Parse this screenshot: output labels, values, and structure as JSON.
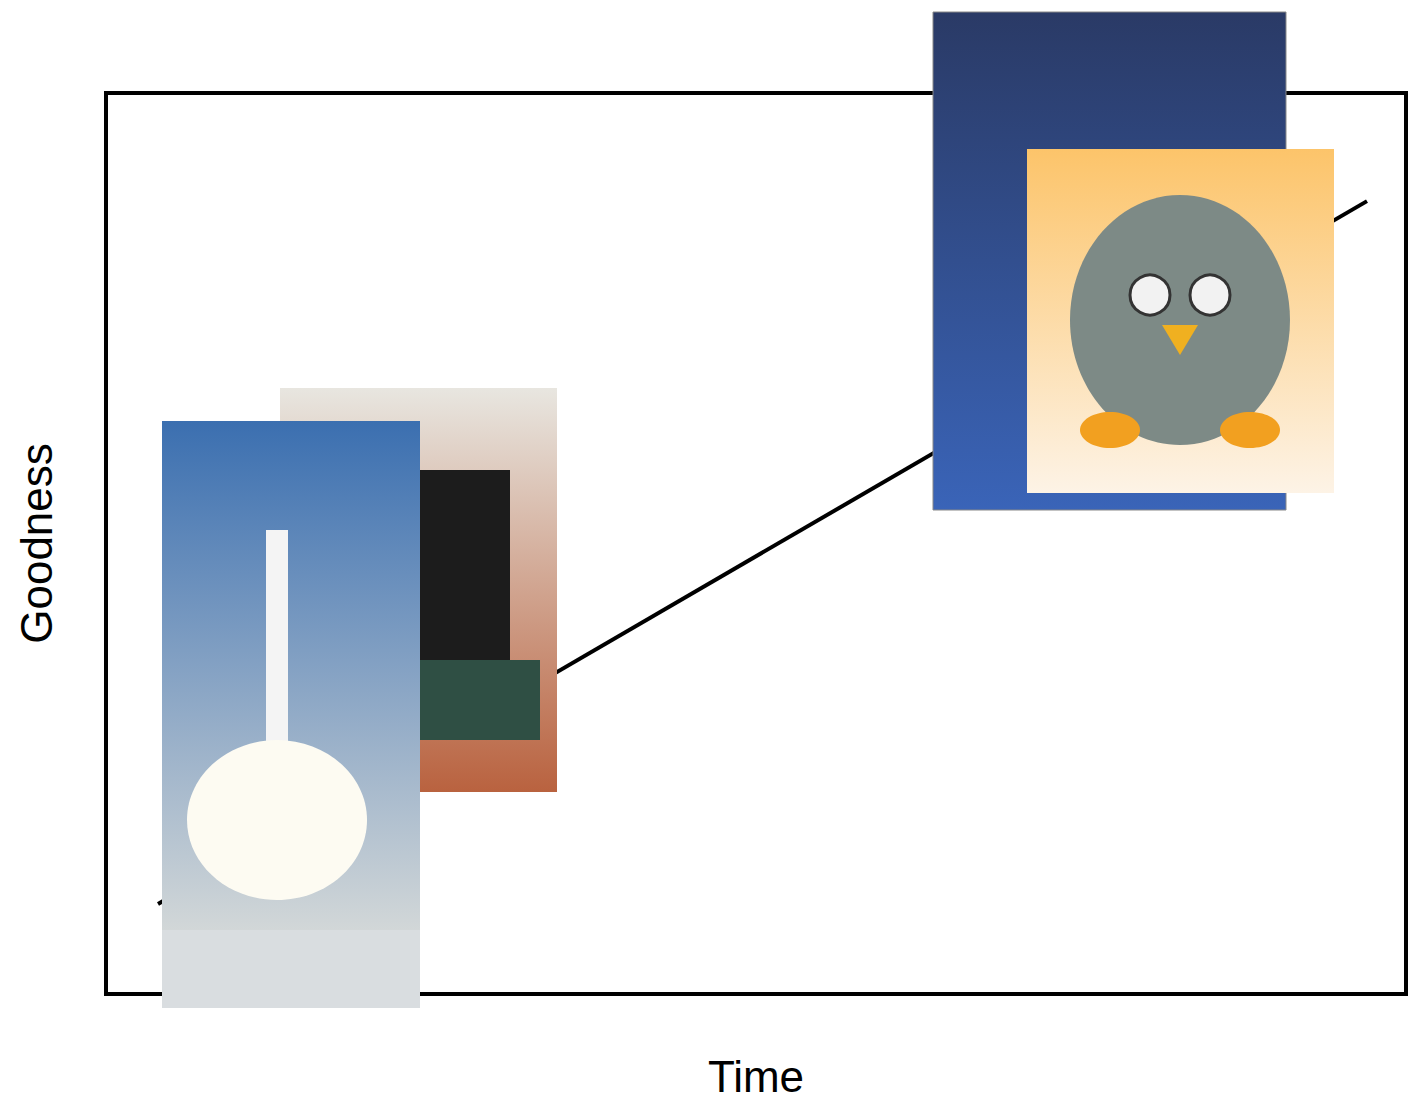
{
  "chart_data": {
    "type": "line",
    "x_label": "Time",
    "y_label": "Goodness",
    "x": [
      4,
      97
    ],
    "values": [
      10,
      88
    ],
    "color": "#000000",
    "xlim": [
      0,
      100
    ],
    "ylim": [
      0,
      100
    ],
    "grid": false,
    "tick_labels": false
  }
}
